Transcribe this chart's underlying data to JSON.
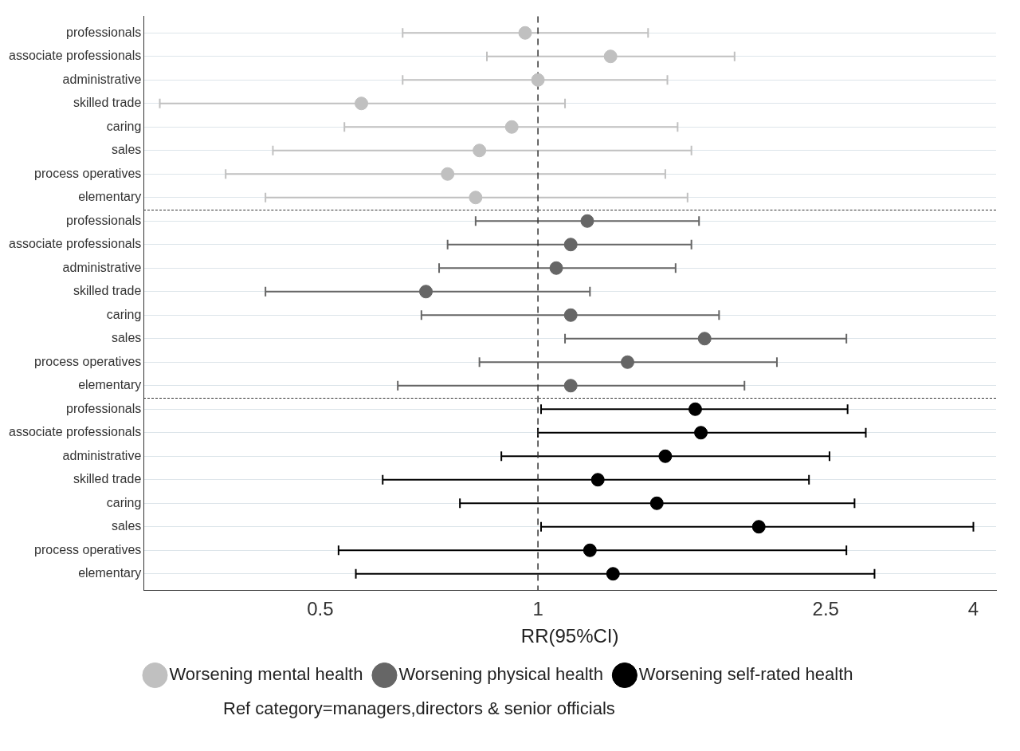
{
  "chart_data": {
    "type": "scatter",
    "orientation": "horizontal",
    "xlabel": "RR(95%CI)",
    "log": "x",
    "xlim": [
      0.285,
      4.3
    ],
    "xticks": [
      0.5,
      1,
      2.5,
      4
    ],
    "grid": "y",
    "legend": "bottom",
    "marker": "circle",
    "categories": [
      "professionals",
      "associate professionals",
      "administrative",
      "skilled trade",
      "caring",
      "sales",
      "process operatives",
      "elementary",
      "professionals",
      "associate professionals",
      "administrative",
      "skilled trade",
      "caring",
      "sales",
      "process operatives",
      "elementary",
      "professionals",
      "associate professionals",
      "administrative",
      "skilled trade",
      "caring",
      "sales",
      "process operatives",
      "elementary"
    ],
    "series": [
      {
        "name": "Worsening mental health",
        "color": "#c0c0c0",
        "values": [
          0.96,
          1.26,
          1.0,
          0.57,
          0.92,
          0.83,
          0.75,
          0.82,
          null,
          null,
          null,
          null,
          null,
          null,
          null,
          null,
          null,
          null,
          null,
          null,
          null,
          null,
          null,
          null
        ],
        "errors": [
          [
            0.65,
            1.42
          ],
          [
            0.85,
            1.87
          ],
          [
            0.65,
            1.51
          ],
          [
            0.3,
            1.09
          ],
          [
            0.54,
            1.56
          ],
          [
            0.43,
            1.63
          ],
          [
            0.37,
            1.5
          ],
          [
            0.42,
            1.61
          ],
          null,
          null,
          null,
          null,
          null,
          null,
          null,
          null,
          null,
          null,
          null,
          null,
          null,
          null,
          null,
          null
        ]
      },
      {
        "name": "Worsening physical health",
        "color": "#666666",
        "values": [
          null,
          null,
          null,
          null,
          null,
          null,
          null,
          null,
          1.17,
          1.11,
          1.06,
          0.7,
          1.11,
          1.7,
          1.33,
          1.11,
          null,
          null,
          null,
          null,
          null,
          null,
          null,
          null
        ],
        "errors": [
          null,
          null,
          null,
          null,
          null,
          null,
          null,
          null,
          [
            0.82,
            1.67
          ],
          [
            0.75,
            1.63
          ],
          [
            0.73,
            1.55
          ],
          [
            0.42,
            1.18
          ],
          [
            0.69,
            1.78
          ],
          [
            1.09,
            2.67
          ],
          [
            0.83,
            2.14
          ],
          [
            0.64,
            1.93
          ],
          null,
          null,
          null,
          null,
          null,
          null,
          null,
          null
        ]
      },
      {
        "name": "Worsening self-rated health",
        "color": "#000000",
        "values": [
          null,
          null,
          null,
          null,
          null,
          null,
          null,
          null,
          null,
          null,
          null,
          null,
          null,
          null,
          null,
          null,
          1.65,
          1.68,
          1.5,
          1.21,
          1.46,
          2.02,
          1.18,
          1.27
        ],
        "errors": [
          null,
          null,
          null,
          null,
          null,
          null,
          null,
          null,
          null,
          null,
          null,
          null,
          null,
          null,
          null,
          null,
          [
            1.01,
            2.68
          ],
          [
            1.0,
            2.84
          ],
          [
            0.89,
            2.53
          ],
          [
            0.61,
            2.37
          ],
          [
            0.78,
            2.74
          ],
          [
            1.01,
            4.0
          ],
          [
            0.53,
            2.67
          ],
          [
            0.56,
            2.92
          ]
        ]
      }
    ],
    "ref_lines": [
      {
        "axis": "x",
        "value": 1,
        "line_style": "dashed",
        "color": "#333333"
      }
    ],
    "annotations": [
      "Ref category=managers,directors & senior officials"
    ]
  }
}
